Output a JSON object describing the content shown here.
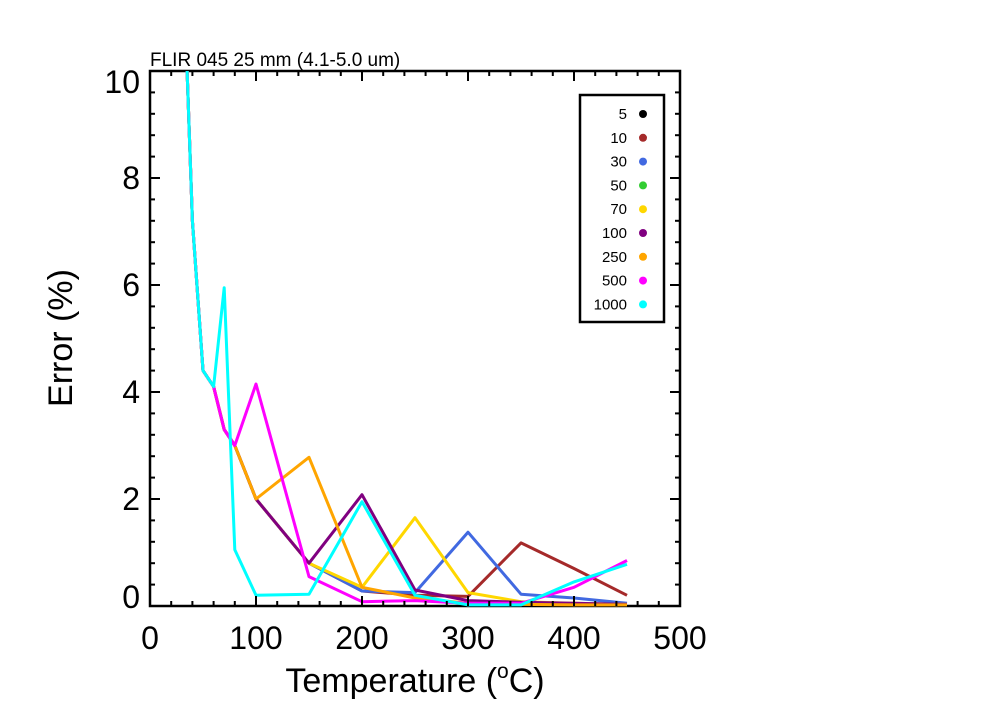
{
  "chart_data": {
    "type": "line",
    "title": "FLIR 045 25 mm (4.1-5.0 um)",
    "xlabel_main": "Temperature (",
    "xlabel_sup": "o",
    "xlabel_end": "C)",
    "ylabel": "Error (%)",
    "xlim": [
      0,
      500
    ],
    "ylim": [
      0,
      10
    ],
    "xticks": [
      0,
      100,
      200,
      300,
      400,
      500
    ],
    "yticks": [
      0,
      2,
      4,
      6,
      8,
      10
    ],
    "xtick_labels": [
      "0",
      "100",
      "200",
      "300",
      "400",
      "500"
    ],
    "ytick_labels": [
      "0",
      "2",
      "4",
      "6",
      "8",
      "10"
    ],
    "grid": false,
    "legend_position": "top-right",
    "series": [
      {
        "name": "5",
        "color": "#000000",
        "x": [],
        "y": []
      },
      {
        "name": "10",
        "color": "#a52a2a",
        "x": [
          35,
          40,
          50,
          60,
          70,
          80,
          100,
          150,
          200,
          250,
          300,
          350,
          400,
          450
        ],
        "y": [
          10,
          7.2,
          4.4,
          4.1,
          3.3,
          3.0,
          2.0,
          0.8,
          0.28,
          0.2,
          0.18,
          1.18,
          0.7,
          0.2
        ]
      },
      {
        "name": "30",
        "color": "#4169e1",
        "x": [
          35,
          40,
          50,
          60,
          70,
          80,
          100,
          150,
          200,
          250,
          300,
          350,
          400,
          450
        ],
        "y": [
          10,
          7.2,
          4.4,
          4.1,
          3.3,
          3.0,
          2.0,
          0.8,
          0.28,
          0.25,
          1.38,
          0.22,
          0.15,
          0.05
        ]
      },
      {
        "name": "50",
        "color": "#32cd32",
        "x": [],
        "y": []
      },
      {
        "name": "70",
        "color": "#ffd700",
        "x": [
          35,
          40,
          50,
          60,
          70,
          80,
          100,
          150,
          200,
          250,
          300,
          350,
          400,
          450
        ],
        "y": [
          10,
          7.2,
          4.4,
          4.1,
          3.3,
          3.0,
          2.0,
          0.8,
          0.35,
          1.65,
          0.25,
          0.08,
          0.05,
          0.03
        ]
      },
      {
        "name": "100",
        "color": "#800080",
        "x": [
          35,
          40,
          50,
          60,
          70,
          80,
          100,
          150,
          200,
          250,
          300,
          350,
          400,
          450
        ],
        "y": [
          10,
          7.2,
          4.4,
          4.1,
          3.3,
          3.0,
          2.0,
          0.8,
          2.08,
          0.3,
          0.1,
          0.07,
          0.05,
          0.03
        ]
      },
      {
        "name": "250",
        "color": "#ffa500",
        "x": [
          35,
          40,
          50,
          60,
          70,
          80,
          100,
          150,
          200,
          250,
          300,
          350,
          400,
          450
        ],
        "y": [
          10,
          7.2,
          4.4,
          4.1,
          3.3,
          3.0,
          2.0,
          2.78,
          0.35,
          0.15,
          0.05,
          0.03,
          0.02,
          0.02
        ]
      },
      {
        "name": "500",
        "color": "#ff00ff",
        "x": [
          35,
          40,
          50,
          60,
          70,
          80,
          100,
          150,
          200,
          250,
          300,
          350,
          400,
          450
        ],
        "y": [
          10,
          7.2,
          4.4,
          4.1,
          3.3,
          3.0,
          4.15,
          0.55,
          0.08,
          0.1,
          0.05,
          0.05,
          0.35,
          0.85
        ]
      },
      {
        "name": "1000",
        "color": "#00ffff",
        "x": [
          35,
          40,
          50,
          60,
          70,
          80,
          100,
          150,
          200,
          250,
          300,
          350,
          400,
          450
        ],
        "y": [
          10,
          7.2,
          4.4,
          4.1,
          5.95,
          1.05,
          0.2,
          0.22,
          1.95,
          0.2,
          0.02,
          0.02,
          0.45,
          0.78
        ]
      }
    ]
  }
}
